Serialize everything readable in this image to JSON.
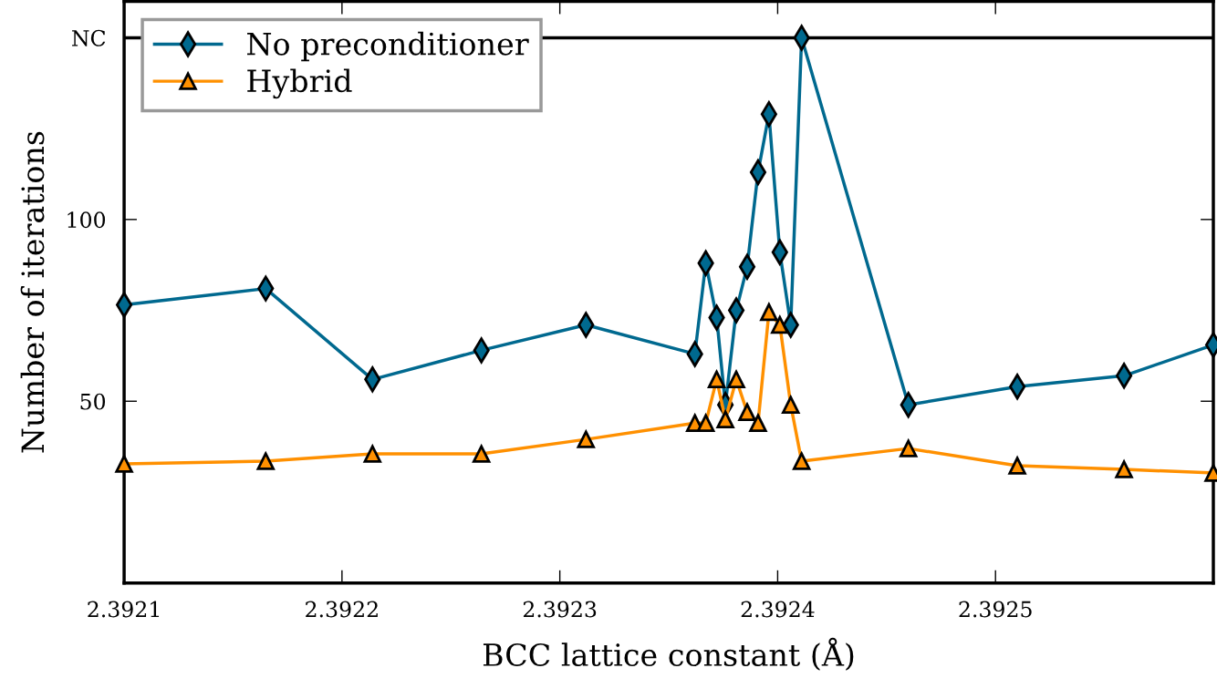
{
  "chart_data": {
    "type": "line",
    "xlabel": "BCC lattice constant (Å)",
    "ylabel": "Number of iterations",
    "xlim": [
      2.3921,
      2.3926
    ],
    "xticks": [
      2.3921,
      2.3922,
      2.3923,
      2.3924,
      2.3925
    ],
    "ylim": [
      0,
      160
    ],
    "yticks": [
      50,
      100,
      {
        "value": 150,
        "label": "NC"
      }
    ],
    "grid": false,
    "legend": "top left",
    "line_style": "solid",
    "ref_lines": [
      {
        "axis": "y",
        "value": 150,
        "color": "#000000"
      }
    ],
    "series": [
      {
        "name": "No preconditioner",
        "color": "#00698f",
        "marker": "diamond",
        "x": [
          2.3921,
          2.392165,
          2.392214,
          2.392264,
          2.392312,
          2.392362,
          2.392367,
          2.392372,
          2.392376,
          2.392381,
          2.392386,
          2.392391,
          2.392396,
          2.392401,
          2.392406,
          2.392411,
          2.39246,
          2.39251,
          2.392559,
          2.3926
        ],
        "values": [
          76.5,
          81,
          56,
          64,
          71,
          63,
          88,
          73,
          49,
          75,
          87,
          113,
          129,
          91,
          71,
          150,
          49,
          54,
          57,
          65.5
        ]
      },
      {
        "name": "Hybrid",
        "color": "#ff9000",
        "marker": "triangle",
        "x": [
          2.3921,
          2.392165,
          2.392214,
          2.392264,
          2.392312,
          2.392362,
          2.392367,
          2.392372,
          2.392376,
          2.392381,
          2.392386,
          2.392391,
          2.392396,
          2.392401,
          2.392406,
          2.392411,
          2.39246,
          2.39251,
          2.392559,
          2.3926
        ],
        "values": [
          32.75,
          33.5,
          35.5,
          35.5,
          39.5,
          44,
          44,
          56,
          45,
          56,
          47,
          44,
          74.5,
          71,
          49,
          33.5,
          37,
          32.25,
          31.25,
          30.25
        ]
      }
    ]
  }
}
